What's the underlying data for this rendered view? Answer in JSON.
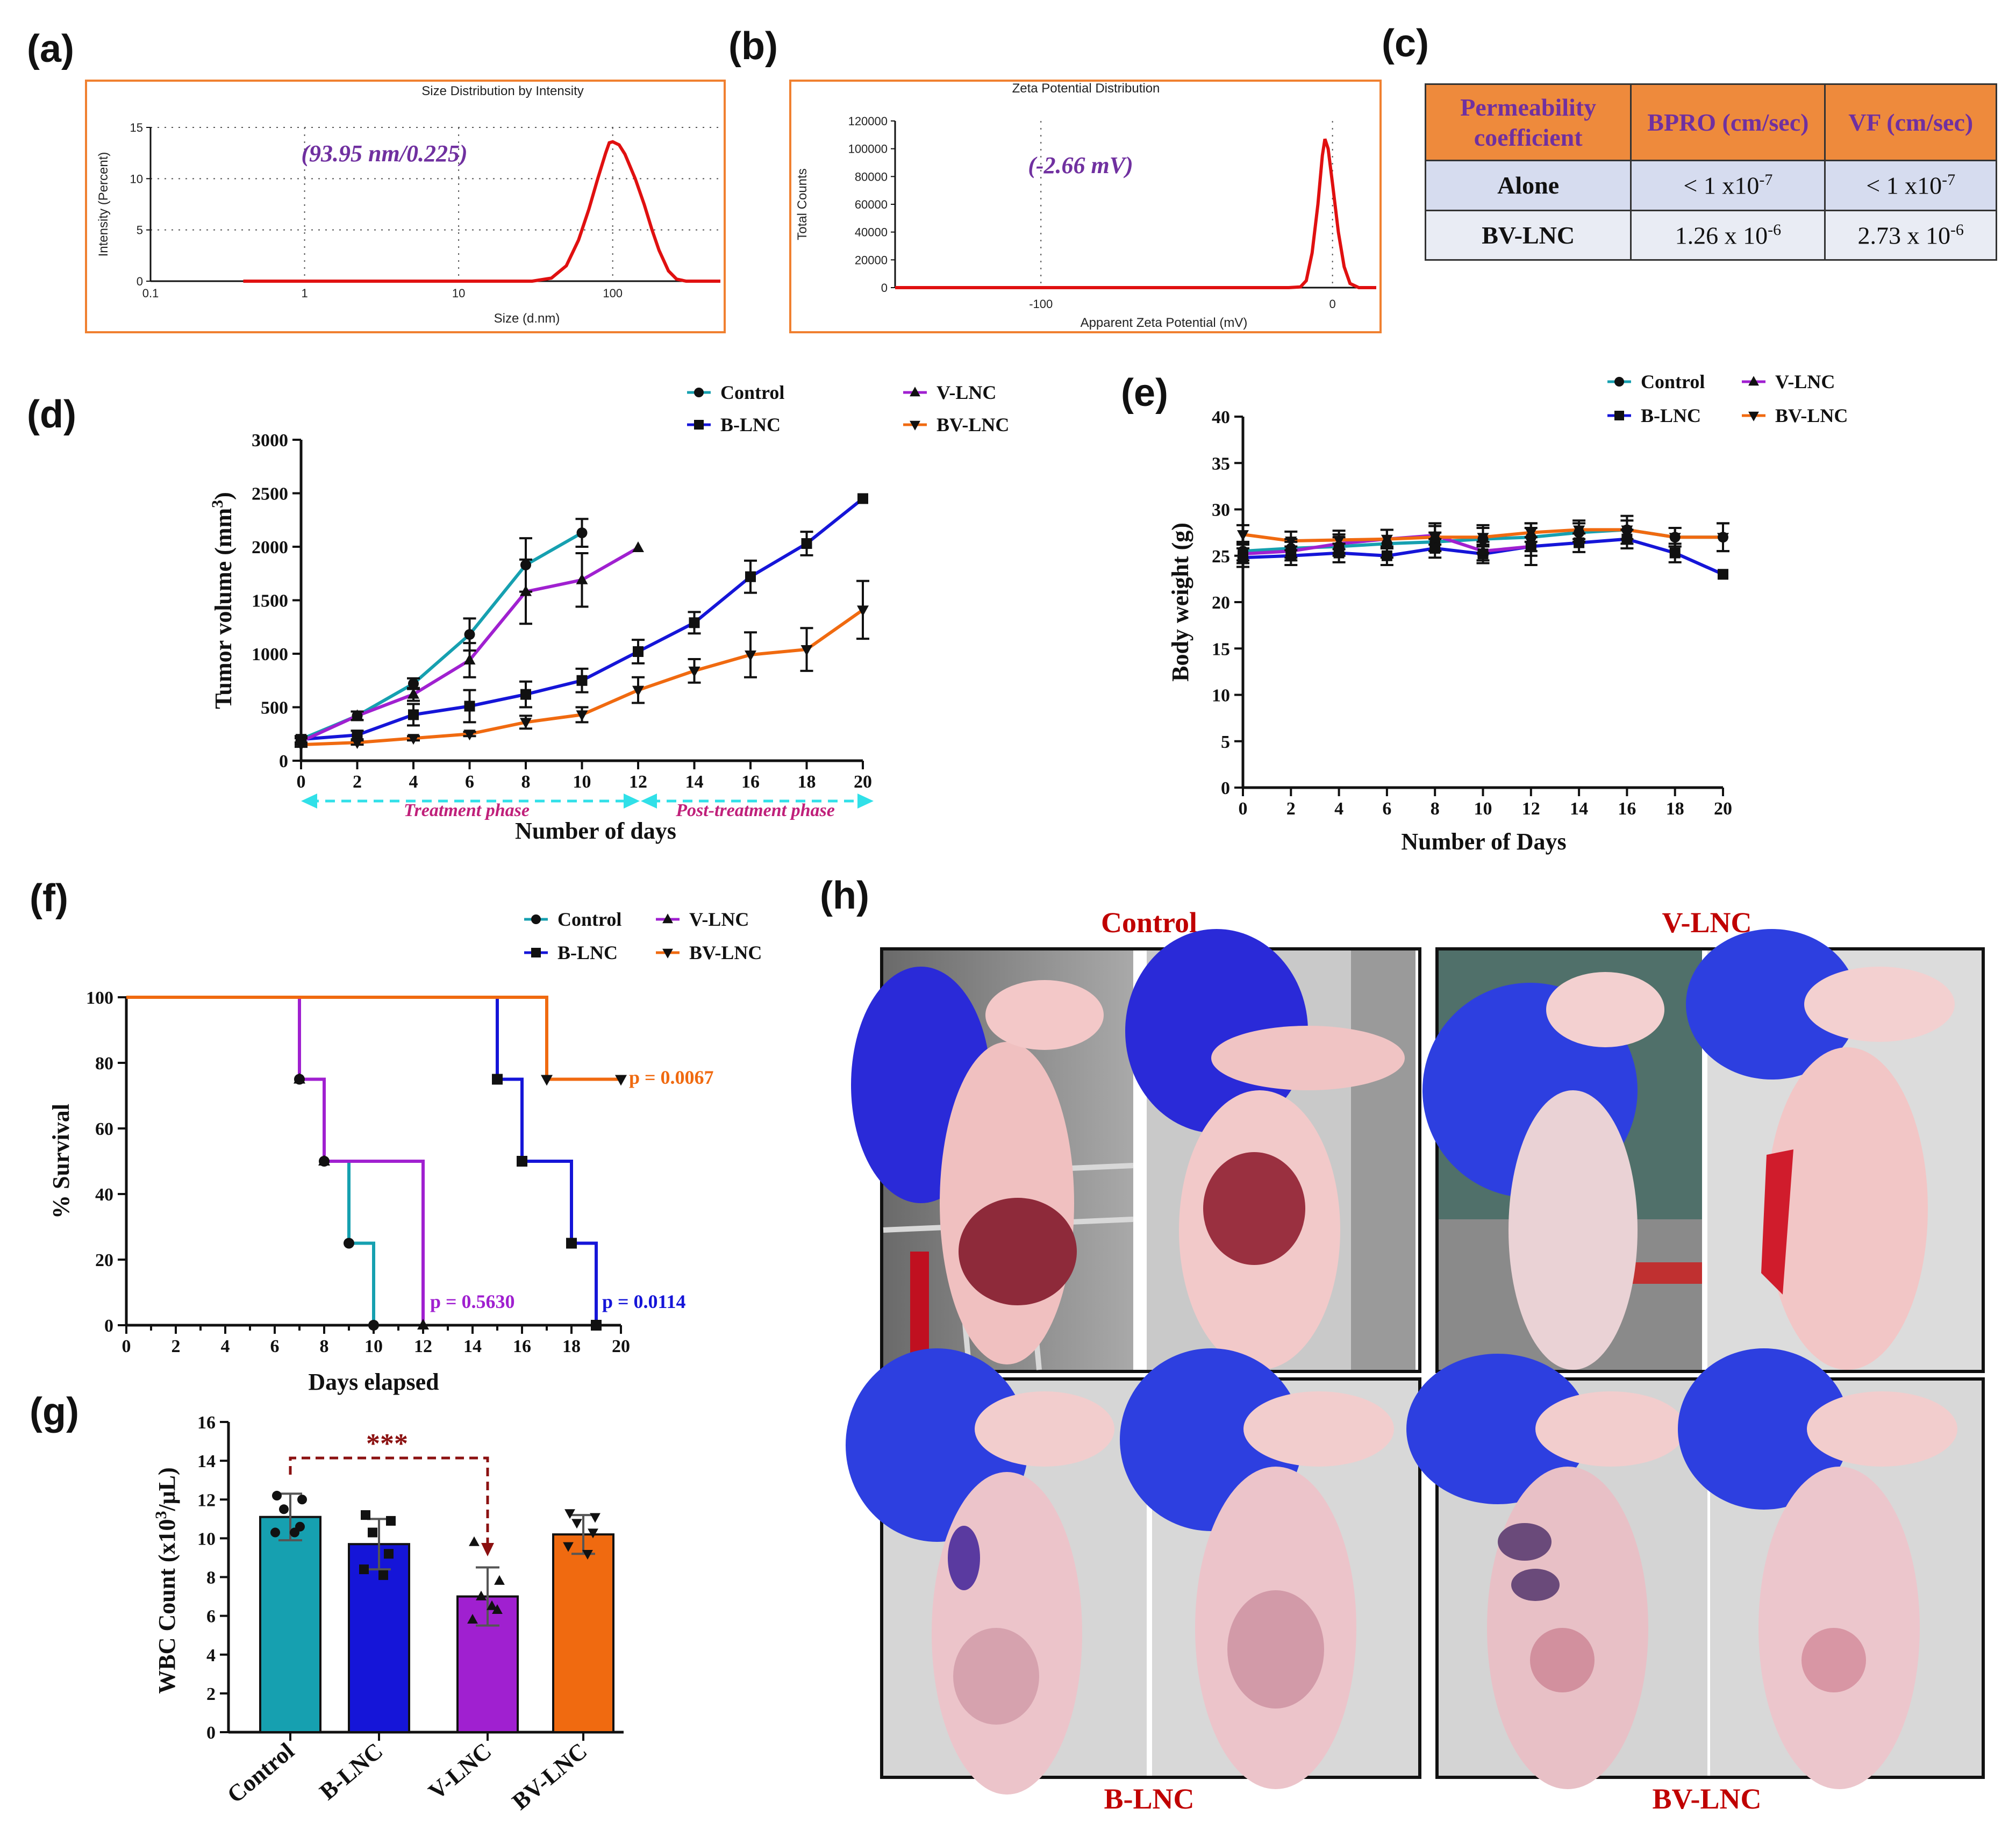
{
  "panel_labels": {
    "a": "(a)",
    "b": "(b)",
    "c": "(c)",
    "d": "(d)",
    "e": "(e)",
    "f": "(f)",
    "g": "(g)",
    "h": "(h)"
  },
  "colors": {
    "control": "#16a0b0",
    "blnc": "#1515d8",
    "vlnc": "#a020d0",
    "bvlnc": "#f06a10",
    "red_curve": "#e01010",
    "frame_orange": "#f08030",
    "annot_purple": "#7030a0",
    "photo_title": "#c00000",
    "treat_text": "#c0207a",
    "arrow_cyan": "#30e0e8"
  },
  "panel_a": {
    "title": "Size Distribution by Intensity",
    "xlabel": "Size (d.nm)",
    "ylabel": "Intensity (Percent)",
    "annotation": "(93.95 nm/0.225)",
    "xticks": [
      "0.1",
      "1",
      "10",
      "100"
    ],
    "yticks": [
      "0",
      "5",
      "10",
      "15"
    ]
  },
  "panel_b": {
    "title": "Zeta Potential Distribution",
    "xlabel": "Apparent Zeta Potential (mV)",
    "ylabel": "Total Counts",
    "annotation": "(-2.66 mV)",
    "xticks": [
      "-100",
      "0"
    ],
    "yticks": [
      "0",
      "20000",
      "40000",
      "60000",
      "80000",
      "100000",
      "120000"
    ]
  },
  "panel_c": {
    "headers": [
      "Permeability coefficient",
      "BPRO (cm/sec)",
      "VF (cm/sec)"
    ],
    "rows": [
      {
        "label": "Alone",
        "bpro": "< 1 x10",
        "bpro_exp": "-7",
        "vf": "< 1 x10",
        "vf_exp": "-7"
      },
      {
        "label": "BV-LNC",
        "bpro": "1.26 x 10",
        "bpro_exp": "-6",
        "vf": "2.73 x 10",
        "vf_exp": "-6"
      }
    ]
  },
  "legend": {
    "control": "Control",
    "blnc": "B-LNC",
    "vlnc": "V-LNC",
    "bvlnc": "BV-LNC"
  },
  "panel_d_text": {
    "ylabel": "Tumor volume (mm",
    "ylabel_sup": "3",
    "ylabel_end": ")",
    "xlabel": "Number of days",
    "treatment": "Treatment phase",
    "post": "Post-treatment phase"
  },
  "panel_e_text": {
    "ylabel": "Body weight (g)",
    "xlabel": "Number of Days"
  },
  "panel_f_text": {
    "ylabel": "% Survival",
    "xlabel": "Days elapsed",
    "p_bv": "p = 0.0067",
    "p_v": "p = 0.5630",
    "p_b": "p = 0.0114"
  },
  "panel_g_text": {
    "ylabel": "WBC Count (x10",
    "ylabel_sup": "3",
    "ylabel_end": "/μL)",
    "sig": "***"
  },
  "panel_h": {
    "titles": [
      "Control",
      "V-LNC",
      "B-LNC",
      "BV-LNC"
    ]
  },
  "chart_data": [
    {
      "id": "a",
      "type": "line",
      "title": "Size Distribution by Intensity",
      "xscale": "log",
      "xlim": [
        0.1,
        500
      ],
      "ylim": [
        0,
        15
      ],
      "xlabel": "Size (d.nm)",
      "ylabel": "Intensity (Percent)",
      "series": [
        {
          "x": [
            0.4,
            30,
            40,
            50,
            60,
            70,
            80,
            90,
            95,
            100,
            110,
            120,
            140,
            160,
            180,
            200,
            230,
            260,
            300,
            500
          ],
          "y": [
            0,
            0,
            0.3,
            1.5,
            4,
            7,
            10,
            12.5,
            13.5,
            13.6,
            13.3,
            12.4,
            10,
            7.5,
            5,
            3,
            1,
            0.2,
            0,
            0
          ]
        }
      ]
    },
    {
      "id": "b",
      "type": "line",
      "title": "Zeta Potential Distribution",
      "xlim": [
        -150,
        15
      ],
      "ylim": [
        0,
        120000
      ],
      "xlabel": "Apparent Zeta Potential (mV)",
      "ylabel": "Total Counts",
      "series": [
        {
          "x": [
            -150,
            -15,
            -11,
            -9,
            -7,
            -5,
            -3.5,
            -2.6,
            -1.5,
            0,
            2,
            4,
            6,
            9,
            15
          ],
          "y": [
            0,
            0,
            500,
            5000,
            25000,
            60000,
            95000,
            107000,
            100000,
            75000,
            40000,
            15000,
            3000,
            0,
            0
          ]
        }
      ]
    },
    {
      "id": "d",
      "type": "line",
      "xlabel": "Number of days",
      "ylabel": "Tumor volume (mm3)",
      "xlim": [
        0,
        20
      ],
      "ylim": [
        0,
        3000
      ],
      "series": [
        {
          "name": "Control",
          "x": [
            0,
            2,
            4,
            6,
            8,
            10
          ],
          "y": [
            200,
            420,
            720,
            1180,
            1830,
            2130
          ],
          "err": [
            30,
            40,
            50,
            150,
            250,
            130
          ]
        },
        {
          "name": "B-LNC",
          "x": [
            0,
            2,
            4,
            6,
            8,
            10,
            12,
            14,
            16,
            18,
            20
          ],
          "y": [
            200,
            240,
            430,
            510,
            620,
            750,
            1020,
            1290,
            1720,
            2030,
            2450
          ],
          "err": [
            30,
            40,
            100,
            150,
            120,
            110,
            110,
            100,
            150,
            110,
            0
          ]
        },
        {
          "name": "V-LNC",
          "x": [
            0,
            2,
            4,
            6,
            8,
            10,
            12
          ],
          "y": [
            180,
            420,
            620,
            940,
            1580,
            1690,
            1990
          ],
          "err": [
            30,
            40,
            60,
            160,
            300,
            250,
            0
          ]
        },
        {
          "name": "BV-LNC",
          "x": [
            0,
            2,
            4,
            6,
            8,
            10,
            12,
            14,
            16,
            18,
            20
          ],
          "y": [
            150,
            170,
            210,
            250,
            360,
            430,
            660,
            840,
            990,
            1040,
            1410
          ],
          "err": [
            20,
            20,
            20,
            20,
            60,
            70,
            120,
            110,
            210,
            200,
            270
          ]
        }
      ]
    },
    {
      "id": "e",
      "type": "line",
      "xlabel": "Number of Days",
      "ylabel": "Body weight (g)",
      "xlim": [
        0,
        20
      ],
      "ylim": [
        0,
        40
      ],
      "series": [
        {
          "name": "Control",
          "x": [
            0,
            2,
            4,
            6,
            8,
            10,
            12,
            14,
            16,
            18,
            20
          ],
          "y": [
            25.5,
            25.8,
            26,
            26.3,
            26.5,
            26.8,
            27,
            27.5,
            27.8,
            27,
            27
          ],
          "err": [
            1,
            1,
            1,
            1.5,
            1,
            1.5,
            1.5,
            1,
            1,
            1,
            1.5
          ]
        },
        {
          "name": "B-LNC",
          "x": [
            0,
            2,
            4,
            6,
            8,
            10,
            12,
            14,
            16,
            18,
            20
          ],
          "y": [
            24.8,
            25,
            25.3,
            25,
            25.8,
            25.2,
            26,
            26.4,
            26.8,
            25.3,
            23
          ],
          "err": [
            1,
            1,
            1,
            1,
            1,
            1,
            1,
            1,
            1,
            1,
            0
          ]
        },
        {
          "name": "V-LNC",
          "x": [
            0,
            2,
            4,
            6,
            8,
            10,
            12
          ],
          "y": [
            25.2,
            25.5,
            26.3,
            26.8,
            27.2,
            25.5,
            26
          ],
          "err": [
            1,
            1,
            1,
            1,
            1,
            1,
            2
          ]
        },
        {
          "name": "BV-LNC",
          "x": [
            0,
            2,
            4,
            6,
            8,
            10,
            12,
            14,
            16,
            18,
            20
          ],
          "y": [
            27.3,
            26.6,
            26.7,
            26.8,
            27,
            27,
            27.5,
            27.8,
            27.8,
            27,
            27
          ],
          "err": [
            1,
            1,
            1,
            1,
            1.5,
            1,
            1,
            1,
            1.5,
            1,
            1.5
          ]
        }
      ]
    },
    {
      "id": "f",
      "type": "line",
      "xlabel": "Days elapsed",
      "ylabel": "% Survival",
      "xlim": [
        0,
        20
      ],
      "ylim": [
        0,
        100
      ],
      "series": [
        {
          "name": "Control",
          "x": [
            0,
            7,
            8,
            9,
            10
          ],
          "y": [
            100,
            75,
            50,
            25,
            0
          ]
        },
        {
          "name": "B-LNC",
          "x": [
            0,
            15,
            16,
            18,
            19
          ],
          "y": [
            100,
            75,
            50,
            25,
            0
          ]
        },
        {
          "name": "V-LNC",
          "x": [
            0,
            7,
            8,
            12
          ],
          "y": [
            100,
            75,
            50,
            0
          ]
        },
        {
          "name": "BV-LNC",
          "x": [
            0,
            17,
            20
          ],
          "y": [
            100,
            75,
            75
          ]
        }
      ],
      "annotations": [
        "p = 0.0067",
        "p = 0.5630",
        "p = 0.0114"
      ]
    },
    {
      "id": "g",
      "type": "bar",
      "ylabel": "WBC Count (x103/μL)",
      "ylim": [
        0,
        16
      ],
      "categories": [
        "Control",
        "B-LNC",
        "V-LNC",
        "BV-LNC"
      ],
      "values": [
        11.1,
        9.7,
        7.0,
        10.2
      ],
      "err": [
        1.2,
        1.3,
        1.5,
        1.0
      ],
      "points": [
        [
          12.2,
          12.0,
          11.5,
          10.6,
          10.3,
          10.3
        ],
        [
          11.2,
          10.9,
          10.3,
          9.2,
          8.4,
          8.1
        ],
        [
          9.8,
          7.8,
          7.0,
          6.3,
          5.8,
          6.5
        ],
        [
          11.3,
          11.1,
          10.8,
          10.3,
          9.6,
          9.2
        ]
      ],
      "annotations": [
        "***"
      ]
    }
  ]
}
